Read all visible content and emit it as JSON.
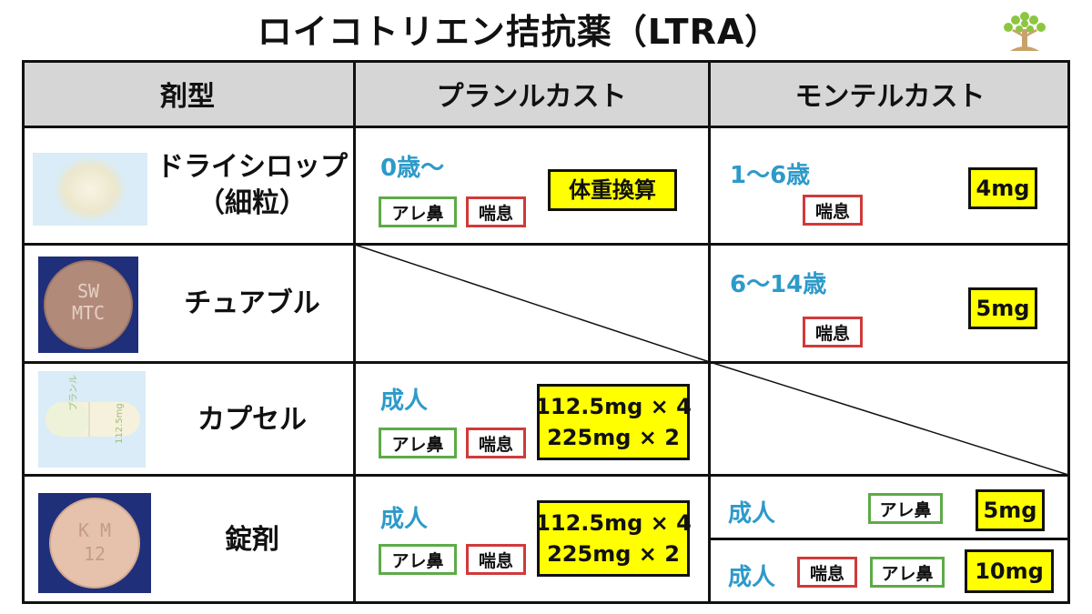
{
  "title": "ロイコトリエン拮抗薬（LTRA）",
  "header": {
    "form": "剤型",
    "pranlukast": "プランルカスト",
    "montelukast": "モンテルカスト"
  },
  "tags": {
    "allergic_rhinitis": "アレ鼻",
    "asthma": "喘息"
  },
  "rows": {
    "dry_syrup": {
      "form_line1": "ドライシロップ",
      "form_line2": "（細粒）",
      "pranlukast_age": "0歳～",
      "pranlukast_dose": "体重換算",
      "montelukast_age": "1～6歳",
      "montelukast_dose": "4mg"
    },
    "chewable": {
      "form": "チュアブル",
      "pill_mark_line1": "SW",
      "pill_mark_line2": "MTC",
      "montelukast_age": "6～14歳",
      "montelukast_dose": "5mg"
    },
    "capsule": {
      "form": "カプセル",
      "capsule_mark1": "プランル",
      "capsule_mark2": "112.5mg",
      "pranlukast_age": "成人",
      "pranlukast_dose_line1": "112.5mg × 4",
      "pranlukast_dose_line2": "225mg × 2"
    },
    "tablet": {
      "form": "錠剤",
      "pill_mark_line1": "K M",
      "pill_mark_line2": "12",
      "pranlukast_age": "成人",
      "pranlukast_dose_line1": "112.5mg × 4",
      "pranlukast_dose_line2": "225mg × 2",
      "montelukast_a_age": "成人",
      "montelukast_a_dose": "5mg",
      "montelukast_b_age": "成人",
      "montelukast_b_dose": "10mg"
    }
  },
  "colors": {
    "header_bg": "#d6d6d6",
    "dose_bg": "#ffff00",
    "age_text": "#2d9ac9",
    "tag_green": "#5cab47",
    "tag_red": "#d03a3a",
    "pill_bg_navy": "#1f2f7a"
  },
  "icons": {
    "logo": "tree-logo-icon"
  }
}
